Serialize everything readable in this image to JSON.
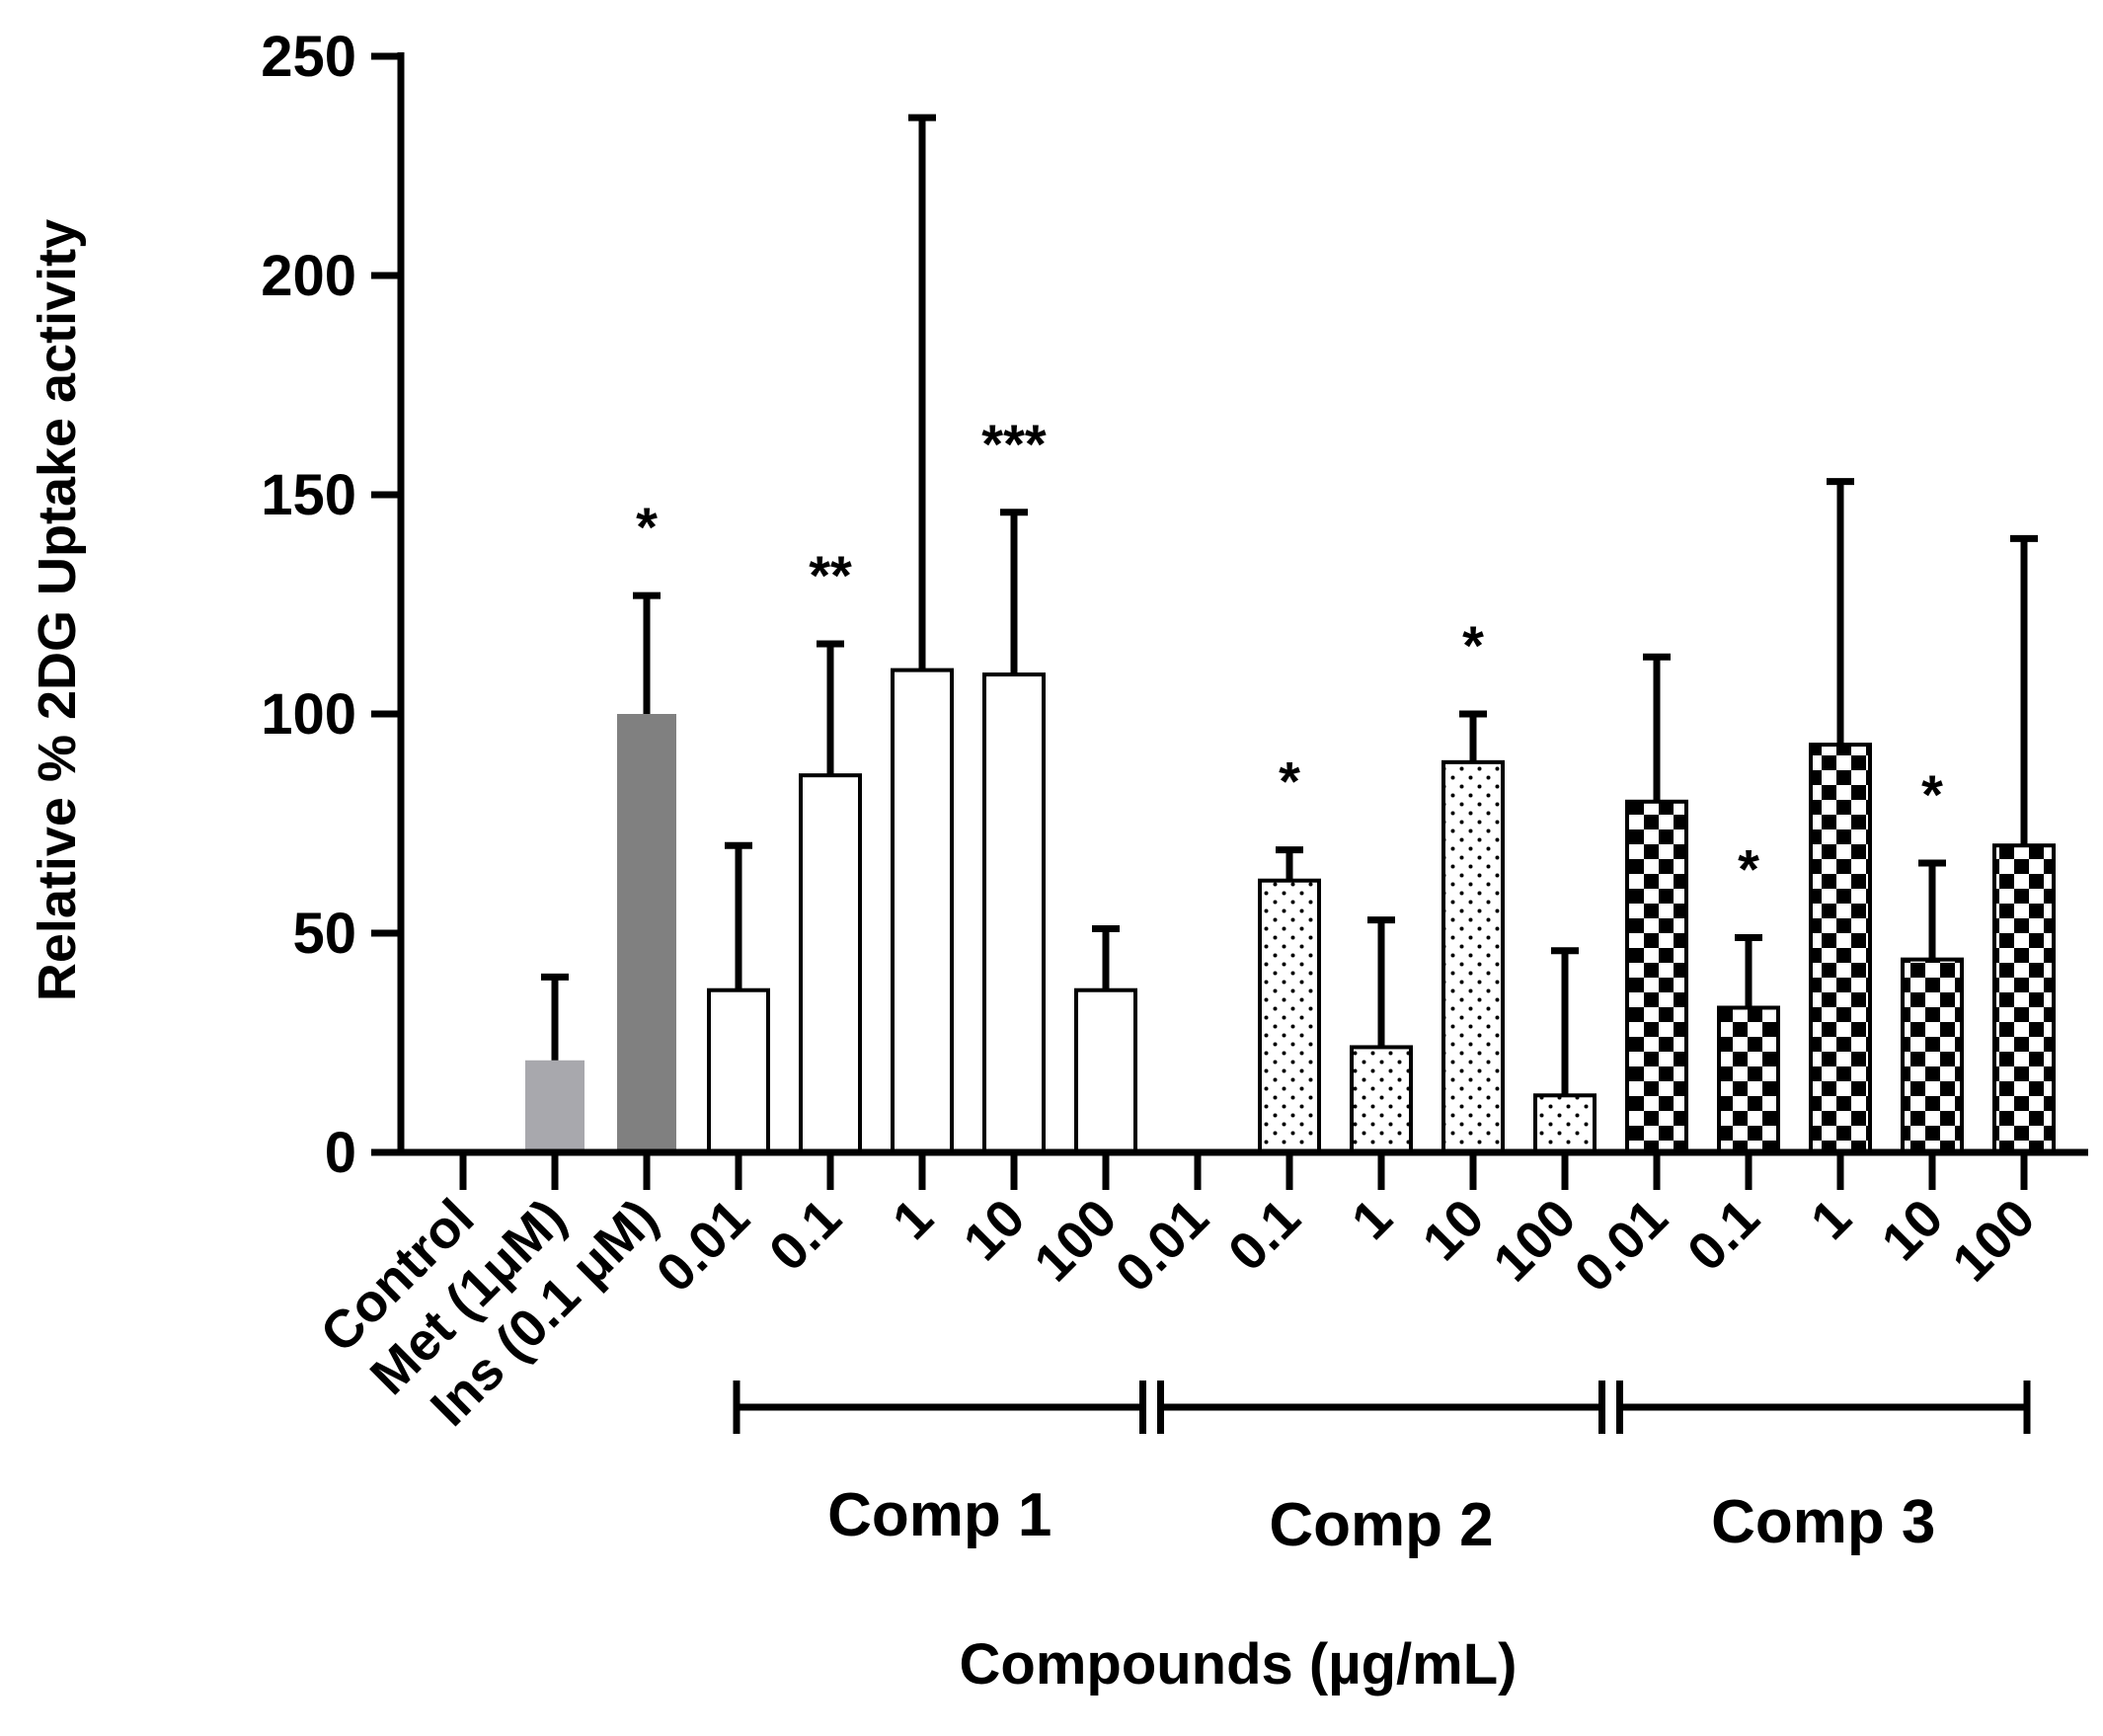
{
  "chart_data": {
    "type": "bar",
    "ylabel": "Relative % 2DG Uptake activity",
    "xlabel": "Compounds (µg/mL)",
    "ylim": [
      0,
      250
    ],
    "yticks": [
      0,
      50,
      100,
      150,
      200,
      250
    ],
    "bars": [
      {
        "label": "Control",
        "value": 0,
        "err": 0,
        "sig": "",
        "fill": "none",
        "group": ""
      },
      {
        "label": "Met (1μM)",
        "value": 21,
        "err": 19,
        "sig": "",
        "fill": "lightgray",
        "group": ""
      },
      {
        "label": "Ins (0.1 μM)",
        "value": 100,
        "err": 27,
        "sig": "*",
        "fill": "darkgray",
        "group": ""
      },
      {
        "label": "0.01",
        "value": 37,
        "err": 33,
        "sig": "",
        "fill": "white",
        "group": "Comp 1"
      },
      {
        "label": "0.1",
        "value": 86,
        "err": 30,
        "sig": "**",
        "fill": "white",
        "group": "Comp 1"
      },
      {
        "label": "1",
        "value": 110,
        "err": 126,
        "sig": "",
        "fill": "white",
        "group": "Comp 1"
      },
      {
        "label": "10",
        "value": 109,
        "err": 37,
        "sig": "***",
        "fill": "white",
        "group": "Comp 1"
      },
      {
        "label": "100",
        "value": 37,
        "err": 14,
        "sig": "",
        "fill": "white",
        "group": "Comp 1"
      },
      {
        "label": "0.01",
        "value": 0,
        "err": 0,
        "sig": "",
        "fill": "none",
        "group": "Comp 2"
      },
      {
        "label": "0.1",
        "value": 62,
        "err": 7,
        "sig": "*",
        "fill": "dots",
        "group": "Comp 2"
      },
      {
        "label": "1",
        "value": 24,
        "err": 29,
        "sig": "",
        "fill": "dots",
        "group": "Comp 2"
      },
      {
        "label": "10",
        "value": 89,
        "err": 11,
        "sig": "*",
        "fill": "dots",
        "group": "Comp 2"
      },
      {
        "label": "100",
        "value": 13,
        "err": 33,
        "sig": "",
        "fill": "dots",
        "group": "Comp 2"
      },
      {
        "label": "0.01",
        "value": 80,
        "err": 33,
        "sig": "",
        "fill": "checker",
        "group": "Comp 3"
      },
      {
        "label": "0.1",
        "value": 33,
        "err": 16,
        "sig": "*",
        "fill": "checker",
        "group": "Comp 3"
      },
      {
        "label": "1",
        "value": 93,
        "err": 60,
        "sig": "",
        "fill": "checker",
        "group": "Comp 3"
      },
      {
        "label": "10",
        "value": 44,
        "err": 22,
        "sig": "*",
        "fill": "checker",
        "group": "Comp 3"
      },
      {
        "label": "100",
        "value": 70,
        "err": 70,
        "sig": "",
        "fill": "checker",
        "group": "Comp 3"
      }
    ],
    "groups": [
      "Comp 1",
      "Comp 2",
      "Comp 3"
    ],
    "colors": {
      "lightgray": "#a8a8ad",
      "darkgray": "#808080",
      "axis": "#000000",
      "bar_stroke": "#000000"
    }
  }
}
